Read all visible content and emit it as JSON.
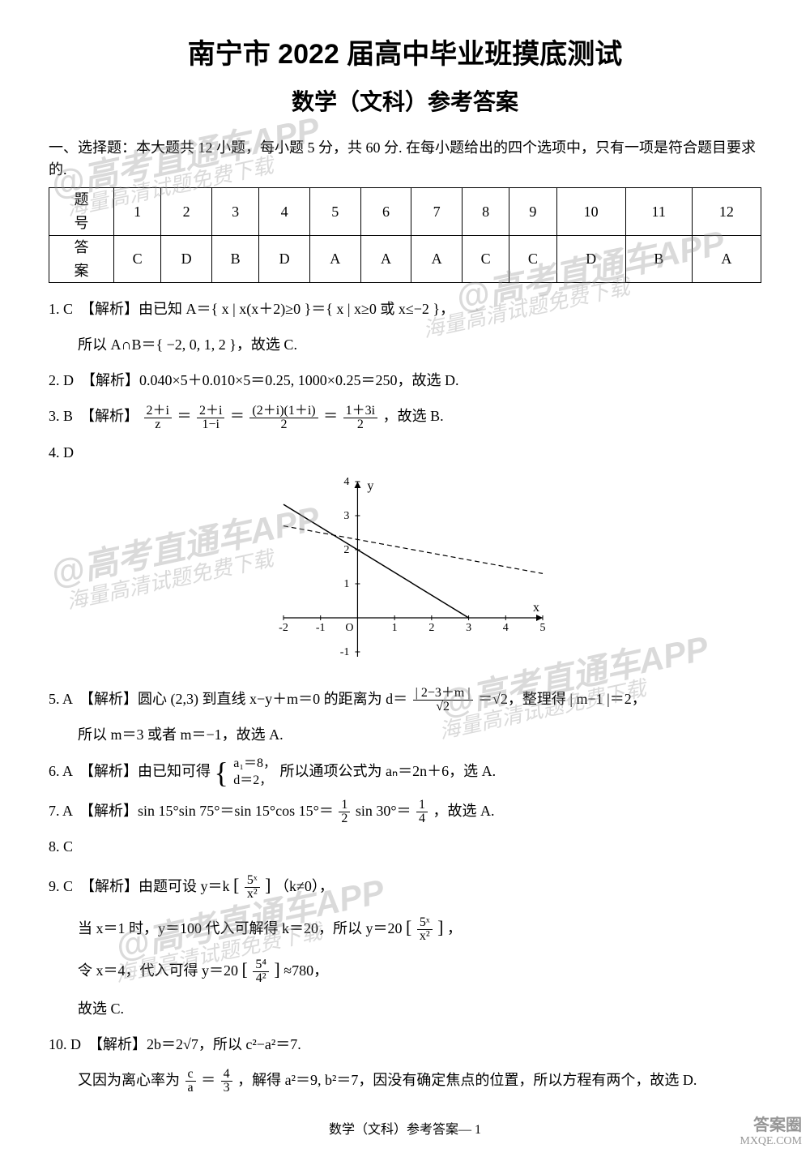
{
  "title_main": "南宁市 2022 届高中毕业班摸底测试",
  "title_sub": "数学（文科）参考答案",
  "section_intro": "一、选择题：本大题共 12 小题，每小题 5 分，共 60 分. 在每小题给出的四个选项中，只有一项是符合题目要求的.",
  "table": {
    "row_label_q": "题　号",
    "row_label_a": "答　案",
    "nums": [
      "1",
      "2",
      "3",
      "4",
      "5",
      "6",
      "7",
      "8",
      "9",
      "10",
      "11",
      "12"
    ],
    "answers": [
      "C",
      "D",
      "B",
      "D",
      "A",
      "A",
      "A",
      "C",
      "C",
      "D",
      "B",
      "A"
    ]
  },
  "q1": {
    "head": "1. C　【解析】由已知 A＝{ x | x(x＋2)≥0 }＝{ x | x≥0 或 x≤−2 }，",
    "line2": "所以 A∩B＝{ −2, 0, 1, 2 }，故选 C."
  },
  "q2": {
    "head": "2. D　【解析】0.040×5＋0.010×5＝0.25, 1000×0.25＝250，故选 D."
  },
  "q3": {
    "head_pre": "3. B　【解析】",
    "f1_num": "2＋i",
    "f1_den": "z",
    "eq1": "＝",
    "f2_num": "2＋i",
    "f2_den": "1−i",
    "eq2": "＝",
    "f3_num": "(2＋i)(1＋i)",
    "f3_den": "2",
    "eq3": "＝",
    "f4_num": "1＋3i",
    "f4_den": "2",
    "tail": "，故选 B."
  },
  "q4": {
    "head": "4. D"
  },
  "chart": {
    "x_min": -2,
    "x_max": 5,
    "y_min": -1,
    "y_max": 4,
    "x_ticks": [
      -2,
      -1,
      1,
      2,
      3,
      4,
      5
    ],
    "y_ticks": [
      -1,
      1,
      2,
      3,
      4
    ],
    "x_label": "x",
    "y_label": "y",
    "axis_color": "#000000",
    "solid_line": {
      "x1": -2,
      "y1": 3.33,
      "x2": 3,
      "y2": 0,
      "color": "#000000",
      "stroke_width": 1.5
    },
    "dashed_line": {
      "x1": -2,
      "y1": 2.7,
      "x2": 5,
      "y2": 1.3,
      "color": "#000000",
      "stroke_width": 1.2,
      "dash": "6,4"
    },
    "bg": "#ffffff",
    "tick_fontsize": 14
  },
  "q5": {
    "head_pre": "5. A　【解析】圆心 (2,3) 到直线 x−y＋m＝0 的距离为 d＝",
    "f_num": "| 2−3＋m |",
    "f_den": "√2",
    "mid": "＝√2，整理得 | m−1 |＝2，",
    "line2": "所以 m＝3 或者 m＝−1，故选 A."
  },
  "q6": {
    "head_pre": "6. A　【解析】由已知可得",
    "case1": "a₁＝8，",
    "case2": "d＝2，",
    "tail": "所以通项公式为 aₙ＝2n＋6，选 A."
  },
  "q7": {
    "head_pre": "7. A　【解析】sin 15°sin 75°＝sin 15°cos 15°＝",
    "f1_num": "1",
    "f1_den": "2",
    "mid": " sin 30°＝",
    "f2_num": "1",
    "f2_den": "4",
    "tail": "，故选 A."
  },
  "q8": {
    "head": "8. C"
  },
  "q9": {
    "head_pre": "9. C　【解析】由题可设 y＝k",
    "f1_num": "5ˣ",
    "f1_den": "x²",
    "tail1": "（k≠0），",
    "line2_pre": "当 x＝1 时，y＝100 代入可解得 k＝20，所以 y＝20",
    "f2_num": "5ˣ",
    "f2_den": "x²",
    "line2_tail": "，",
    "line3_pre": "令 x＝4，代入可得 y＝20",
    "f3_num": "5⁴",
    "f3_den": "4²",
    "line3_tail": "≈780，",
    "line4": "故选 C."
  },
  "q10": {
    "head": "10. D　【解析】2b＝2√7，所以 c²−a²＝7.",
    "line2_pre": "又因为离心率为",
    "f_num": "c",
    "f_den": "a",
    "mid": "＝",
    "f2_num": "4",
    "f2_den": "3",
    "tail": "，解得 a²＝9, b²＝7，因没有确定焦点的位置，所以方程有两个，故选 D."
  },
  "footer": "数学（文科）参考答案— 1",
  "watermarks": {
    "big": "@高考直通车APP",
    "small": "海量高清试题免费下载"
  },
  "corner": {
    "l1": "答案圈",
    "l2": "MXQE.COM"
  }
}
